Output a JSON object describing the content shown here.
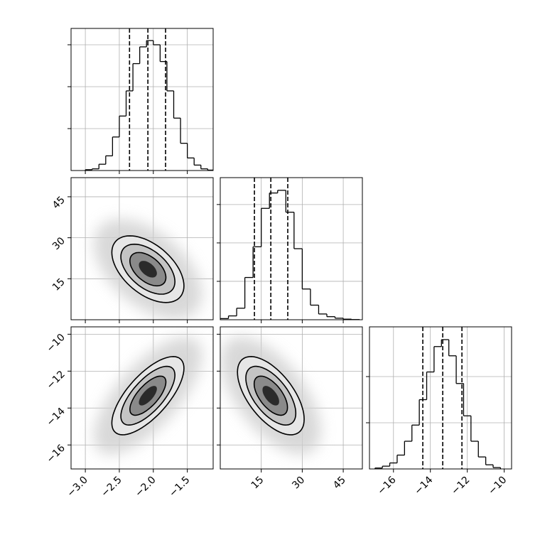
{
  "chart_data": {
    "type": "corner",
    "parameters": [
      {
        "lim": [
          -3.21,
          -1.12
        ],
        "ticks": [
          {
            "value": -3,
            "label": "−3.0"
          },
          {
            "value": -2.5,
            "label": "−2.5"
          },
          {
            "value": -2,
            "label": "−2.0"
          },
          {
            "value": -1.5,
            "label": "−1.5"
          }
        ],
        "bins": [
          -3.0,
          -2.9,
          -2.8,
          -2.7,
          -2.6,
          -2.5,
          -2.4,
          -2.3,
          -2.2,
          -2.1,
          -2.0,
          -1.9,
          -1.8,
          -1.7,
          -1.6,
          -1.5,
          -1.4,
          -1.3,
          -1.2,
          -1.1
        ],
        "counts": [
          20,
          40,
          150,
          350,
          800,
          1300,
          1900,
          2550,
          2950,
          3100,
          3000,
          2600,
          1900,
          1250,
          650,
          300,
          130,
          40,
          10
        ],
        "count_lim": [
          0,
          3390
        ],
        "count_ticks": [
          1000,
          2000,
          3000
        ],
        "quantiles": [
          -2.35,
          -2.08,
          -1.82
        ]
      },
      {
        "lim": [
          0,
          52
        ],
        "ticks": [
          15,
          30,
          45
        ],
        "bins": [
          0,
          3,
          6,
          9,
          12,
          15,
          18,
          21,
          24,
          27,
          30,
          33,
          36,
          39,
          42,
          45,
          48,
          51
        ],
        "counts": [
          30,
          100,
          300,
          1100,
          1900,
          2900,
          3300,
          3370,
          2800,
          1850,
          800,
          380,
          150,
          80,
          40,
          15,
          5
        ],
        "count_lim": [
          0,
          3700
        ],
        "count_ticks": [
          1000,
          2000,
          3000
        ],
        "quantiles": [
          12.5,
          18.5,
          24.7
        ]
      },
      {
        "lim": [
          -17.3,
          -9.6
        ],
        "ticks": [
          {
            "value": -16,
            "label": "−16"
          },
          {
            "value": -14,
            "label": "−14"
          },
          {
            "value": -12,
            "label": "−12"
          },
          {
            "value": -10,
            "label": "−10"
          }
        ],
        "bins": [
          -17.0,
          -16.6,
          -16.2,
          -15.8,
          -15.4,
          -15.0,
          -14.6,
          -14.2,
          -13.8,
          -13.4,
          -13.0,
          -12.6,
          -12.2,
          -11.8,
          -11.4,
          -11.0,
          -10.6,
          -10.2
        ],
        "counts": [
          20,
          60,
          130,
          300,
          600,
          950,
          1500,
          2100,
          2650,
          2800,
          2450,
          1850,
          1150,
          600,
          260,
          90,
          30
        ],
        "count_lim": [
          0,
          3077
        ],
        "count_ticks": [
          1000,
          2000
        ],
        "quantiles": [
          -14.41,
          -13.33,
          -12.29
        ]
      }
    ],
    "correlations": [
      -0.5,
      0.7,
      -0.6
    ],
    "levels": [
      2,
      1.5,
      1,
      0.5
    ]
  }
}
